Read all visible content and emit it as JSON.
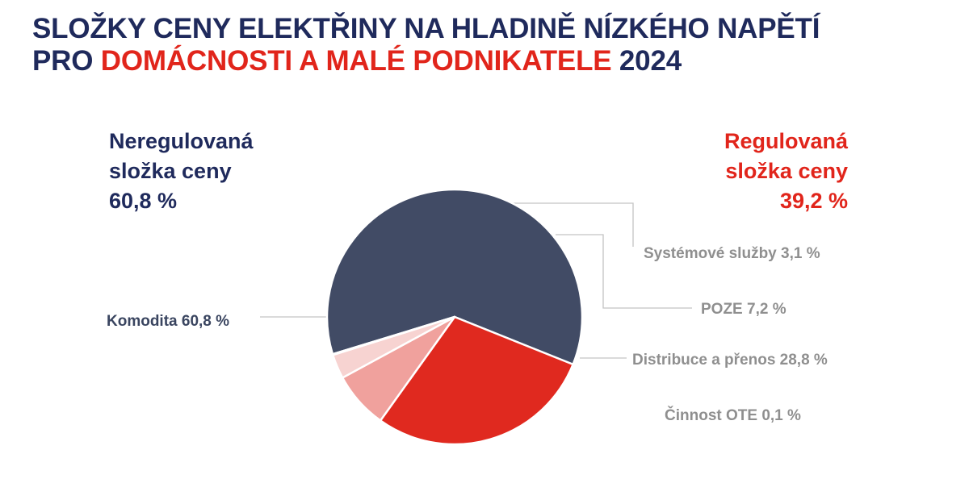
{
  "title": {
    "line1": "SLOŽKY CENY ELEKTŘINY NA HLADINĚ NÍZKÉHO NAPĚTÍ",
    "line2_prefix": "PRO ",
    "line2_highlight": "DOMÁCNOSTI A MALÉ PODNIKATELE",
    "line2_suffix": " 2024"
  },
  "groups": {
    "unregulated": {
      "line1": "Neregulovaná",
      "line2": "složka ceny",
      "value": "60,8 %"
    },
    "regulated": {
      "line1": "Regulovaná",
      "line2": "složka ceny",
      "value": "39,2 %"
    }
  },
  "colors": {
    "navy": "#1f2a5c",
    "red": "#e1251b",
    "label_gray": "#8f8f8f"
  },
  "chart_data": {
    "type": "pie",
    "slices": [
      {
        "name": "Komodita",
        "value": 60.8,
        "label": "Komodita 60,8 %",
        "color": "#414b65"
      },
      {
        "name": "Distribuce a přenos",
        "value": 28.8,
        "label": "Distribuce a přenos 28,8 %",
        "color": "#e0291f"
      },
      {
        "name": "POZE",
        "value": 7.2,
        "label": "POZE 7,2 %",
        "color": "#f0a19d"
      },
      {
        "name": "Systémové služby",
        "value": 3.1,
        "label": "Systémové služby 3,1 %",
        "color": "#f7d3d1"
      },
      {
        "name": "Činnost OTE",
        "value": 0.1,
        "label": "Činnost OTE 0,1 %",
        "color": "#f7e3e2"
      }
    ]
  }
}
